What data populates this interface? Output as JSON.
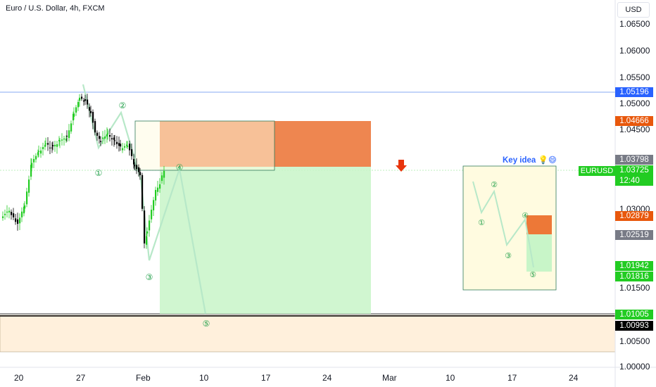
{
  "header": {
    "symbol_title": "Euro / U.S. Dollar, 4h, FXCM",
    "currency": "USD"
  },
  "price_axis": {
    "ticks": [
      "1.06500",
      "1.06000",
      "1.05500",
      "1.05000",
      "1.04500",
      "1.03000",
      "1.01500",
      "1.00500",
      "1.00000"
    ]
  },
  "time_axis": {
    "ticks": [
      "20",
      "27",
      "Feb",
      "10",
      "17",
      "24",
      "Mar",
      "10",
      "17",
      "24"
    ]
  },
  "price_tags": [
    {
      "label": "1.05196",
      "color": "#2962ff"
    },
    {
      "label": "1.04666",
      "color": "#e8580c"
    },
    {
      "label": "1.03798",
      "color": "#787b86"
    },
    {
      "label": "1.03725",
      "color": "#22cc22"
    },
    {
      "label": "1.02879",
      "color": "#e8580c"
    },
    {
      "label": "1.02519",
      "color": "#787b86"
    },
    {
      "label": "1.01942",
      "color": "#22cc22"
    },
    {
      "label": "1.01816",
      "color": "#22cc22"
    },
    {
      "label": "1.01005",
      "color": "#22cc22"
    },
    {
      "label": "1.00993",
      "color": "#000000"
    }
  ],
  "symbol_tag": "EURUSD",
  "countdown": "12:40",
  "key_idea": {
    "label": "Key idea 💡😄",
    "wave_labels": [
      "①",
      "②",
      "③",
      "④",
      "⑤"
    ]
  },
  "wave_labels": [
    "①",
    "②",
    "③",
    "④",
    "⑤"
  ],
  "colors": {
    "up": "#22cc22",
    "down": "#000000",
    "risk_zone": "#e8580c",
    "reward_zone": "#c8f5c8",
    "support_zone": "#fff0dc",
    "signal_arrow": "#e8340c",
    "resistance_line": "#2962ff"
  }
}
